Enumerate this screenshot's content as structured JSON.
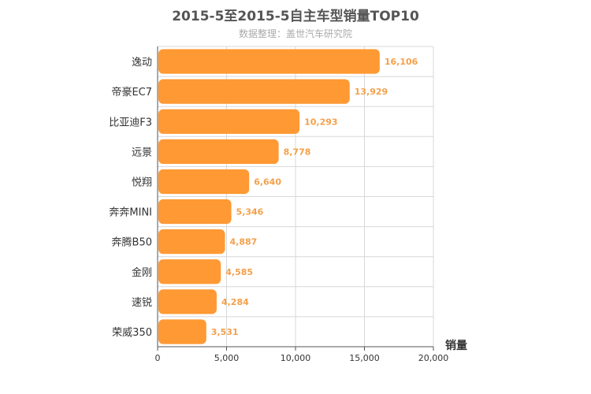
{
  "chart_data": {
    "type": "bar",
    "orientation": "horizontal",
    "title": "2015-5至2015-5自主车型销量TOP10",
    "subtitle": "数据整理：盖世汽车研究院",
    "xlabel": "销量",
    "categories": [
      "逸动",
      "帝豪EC7",
      "比亚迪F3",
      "远景",
      "悦翔",
      "奔奔MINI",
      "奔腾B50",
      "金刚",
      "速锐",
      "荣威350"
    ],
    "values": [
      16106,
      13929,
      10293,
      8778,
      6640,
      5346,
      4887,
      4585,
      4284,
      3531
    ],
    "value_labels": [
      "16,106",
      "13,929",
      "10,293",
      "8,778",
      "6,640",
      "5,346",
      "4,887",
      "4,585",
      "4,284",
      "3,531"
    ],
    "xlim": [
      0,
      20000
    ],
    "xticks": [
      0,
      5000,
      10000,
      15000,
      20000
    ],
    "xtick_labels": [
      "0",
      "5,000",
      "10,000",
      "15,000",
      "20,000"
    ],
    "grid": true,
    "bar_color": "#FF9933",
    "label_color": "#F5A04A"
  }
}
